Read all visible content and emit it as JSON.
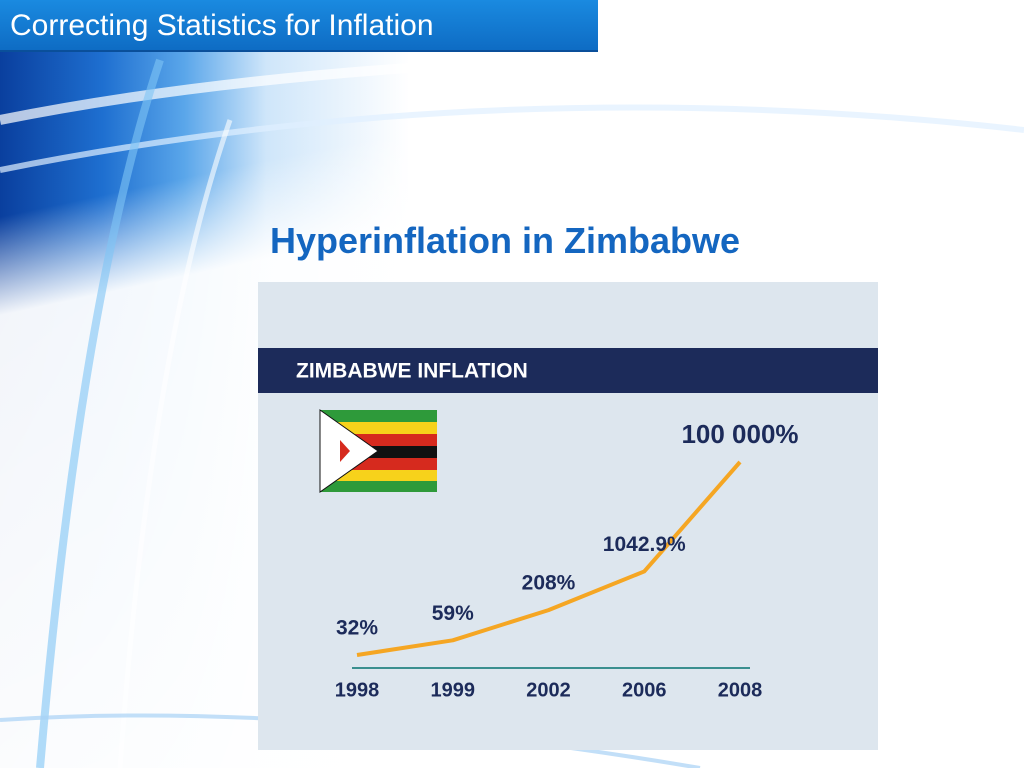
{
  "header": {
    "title": "Correcting Statistics for Inflation"
  },
  "slide_title": "Hyperinflation in Zimbabwe",
  "chart_data": {
    "type": "line",
    "title": "ZIMBABWE INFLATION",
    "categories": [
      "1998",
      "1999",
      "2002",
      "2006",
      "2008"
    ],
    "values": [
      32,
      59,
      208,
      1042.9,
      100000
    ],
    "value_labels": [
      "32%",
      "59%",
      "208%",
      "1042.9%",
      "100 000%"
    ],
    "color": "#f5a623",
    "log_scale": true
  }
}
